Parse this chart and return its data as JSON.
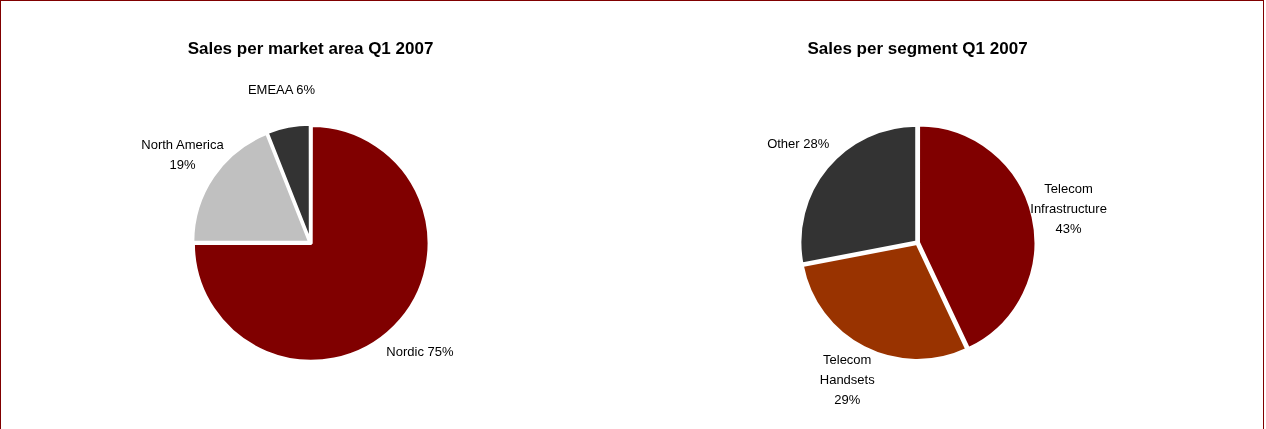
{
  "chart_data": [
    {
      "type": "pie",
      "title": "Sales per market area Q1 2007",
      "categories": [
        "Nordic",
        "North America",
        "EMEAA"
      ],
      "values": [
        75,
        19,
        6
      ],
      "value_labels": [
        "75%",
        "19%",
        "6%"
      ],
      "colors": [
        "#800000",
        "#c0c0c0",
        "#333333"
      ],
      "legend": false
    },
    {
      "type": "pie",
      "title": "Sales per segment Q1 2007",
      "categories": [
        "Telecom Infrastructure",
        "Telecom Handsets",
        "Other"
      ],
      "values": [
        43,
        29,
        28
      ],
      "value_labels": [
        "43%",
        "29%",
        "28%"
      ],
      "colors": [
        "#800000",
        "#993300",
        "#333333"
      ],
      "legend": false
    }
  ]
}
